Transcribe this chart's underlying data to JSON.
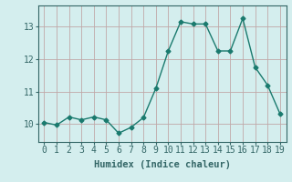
{
  "x": [
    0,
    1,
    2,
    3,
    4,
    5,
    6,
    7,
    8,
    9,
    10,
    11,
    12,
    13,
    14,
    15,
    16,
    17,
    18,
    19
  ],
  "y": [
    10.05,
    9.97,
    10.22,
    10.13,
    10.22,
    10.13,
    9.72,
    9.9,
    10.2,
    11.1,
    12.25,
    13.15,
    13.08,
    13.08,
    12.25,
    12.25,
    13.25,
    11.75,
    11.2,
    10.32
  ],
  "line_color": "#1a7a6e",
  "marker": "D",
  "marker_size": 2.5,
  "bg_color": "#d4eeee",
  "grid_color": "#c0a8a8",
  "xlabel": "Humidex (Indice chaleur)",
  "xlabel_fontsize": 7.5,
  "ytick_labels": [
    "10",
    "11",
    "12",
    "13"
  ],
  "yticks": [
    10,
    11,
    12,
    13
  ],
  "xticks": [
    0,
    1,
    2,
    3,
    4,
    5,
    6,
    7,
    8,
    9,
    10,
    11,
    12,
    13,
    14,
    15,
    16,
    17,
    18,
    19
  ],
  "ylim": [
    9.45,
    13.65
  ],
  "xlim": [
    -0.5,
    19.5
  ],
  "tick_fontsize": 7,
  "spine_color": "#336666"
}
